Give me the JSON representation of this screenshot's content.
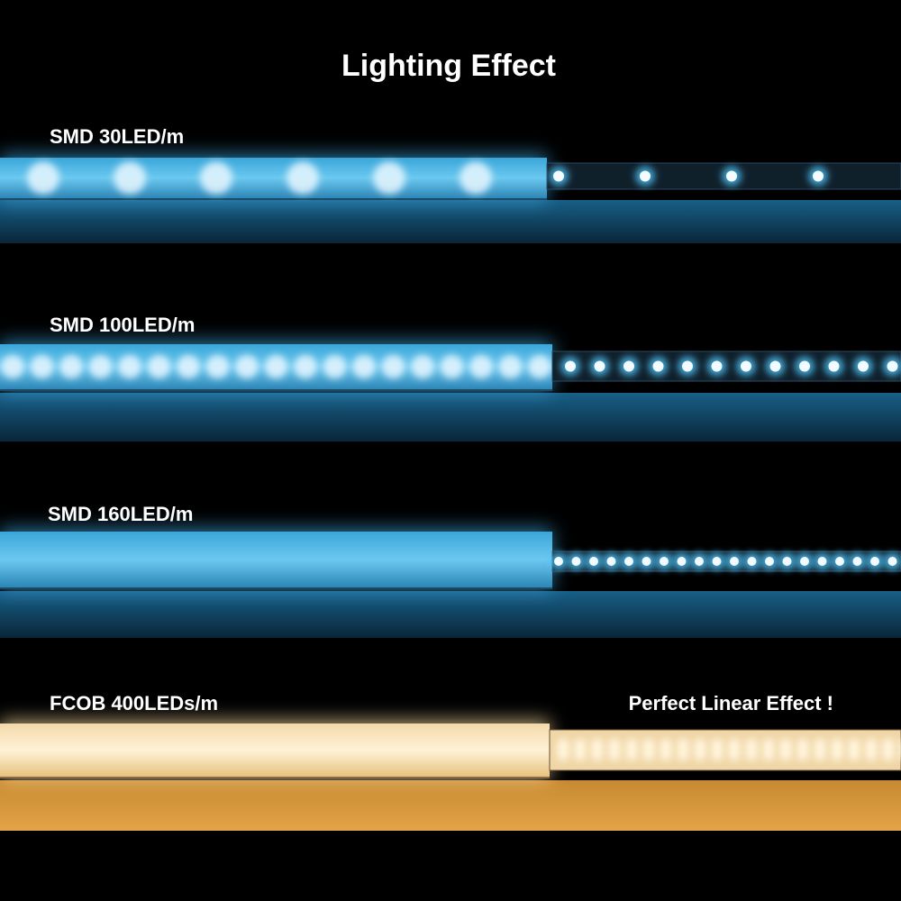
{
  "title": "Lighting Effect",
  "rows": [
    {
      "label": "SMD 30LED/m"
    },
    {
      "label": "SMD 100LED/m"
    },
    {
      "label": "SMD 160LED/m"
    },
    {
      "label": "FCOB 400LEDs/m",
      "note": "Perfect Linear Effect !"
    }
  ]
}
